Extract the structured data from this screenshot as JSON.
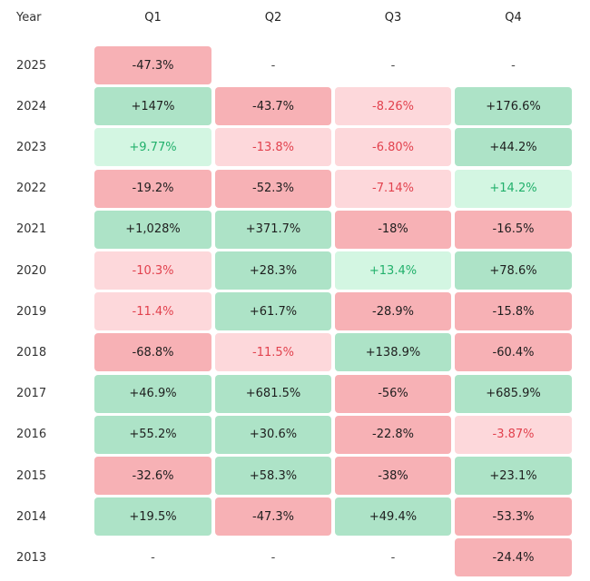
{
  "table": {
    "header": [
      "Year",
      "Q1",
      "Q2",
      "Q3",
      "Q4"
    ],
    "rows": [
      [
        "2025",
        "-47.3%",
        "-",
        "-",
        "-"
      ],
      [
        "2024",
        "+147%",
        "-43.7%",
        "-8.26%",
        "+176.6%"
      ],
      [
        "2023",
        "+9.77%",
        "-13.8%",
        "-6.80%",
        "+44.2%"
      ],
      [
        "2022",
        "-19.2%",
        "-52.3%",
        "-7.14%",
        "+14.2%"
      ],
      [
        "2021",
        "+1,028%",
        "+371.7%",
        "-18%",
        "-16.5%"
      ],
      [
        "2020",
        "-10.3%",
        "+28.3%",
        "+13.4%",
        "+78.6%"
      ],
      [
        "2019",
        "-11.4%",
        "+61.7%",
        "-28.9%",
        "-15.8%"
      ],
      [
        "2018",
        "-68.8%",
        "-11.5%",
        "+138.9%",
        "-60.4%"
      ],
      [
        "2017",
        "+46.9%",
        "+681.5%",
        "-56%",
        "+685.9%"
      ],
      [
        "2016",
        "+55.2%",
        "+30.6%",
        "-22.8%",
        "-3.87%"
      ],
      [
        "2015",
        "-32.6%",
        "+58.3%",
        "-38%",
        "+23.1%"
      ],
      [
        "2014",
        "+19.5%",
        "-47.3%",
        "+49.4%",
        "-53.3%"
      ],
      [
        "2013",
        "-",
        "-",
        "-",
        "-24.4%"
      ]
    ]
  }
}
